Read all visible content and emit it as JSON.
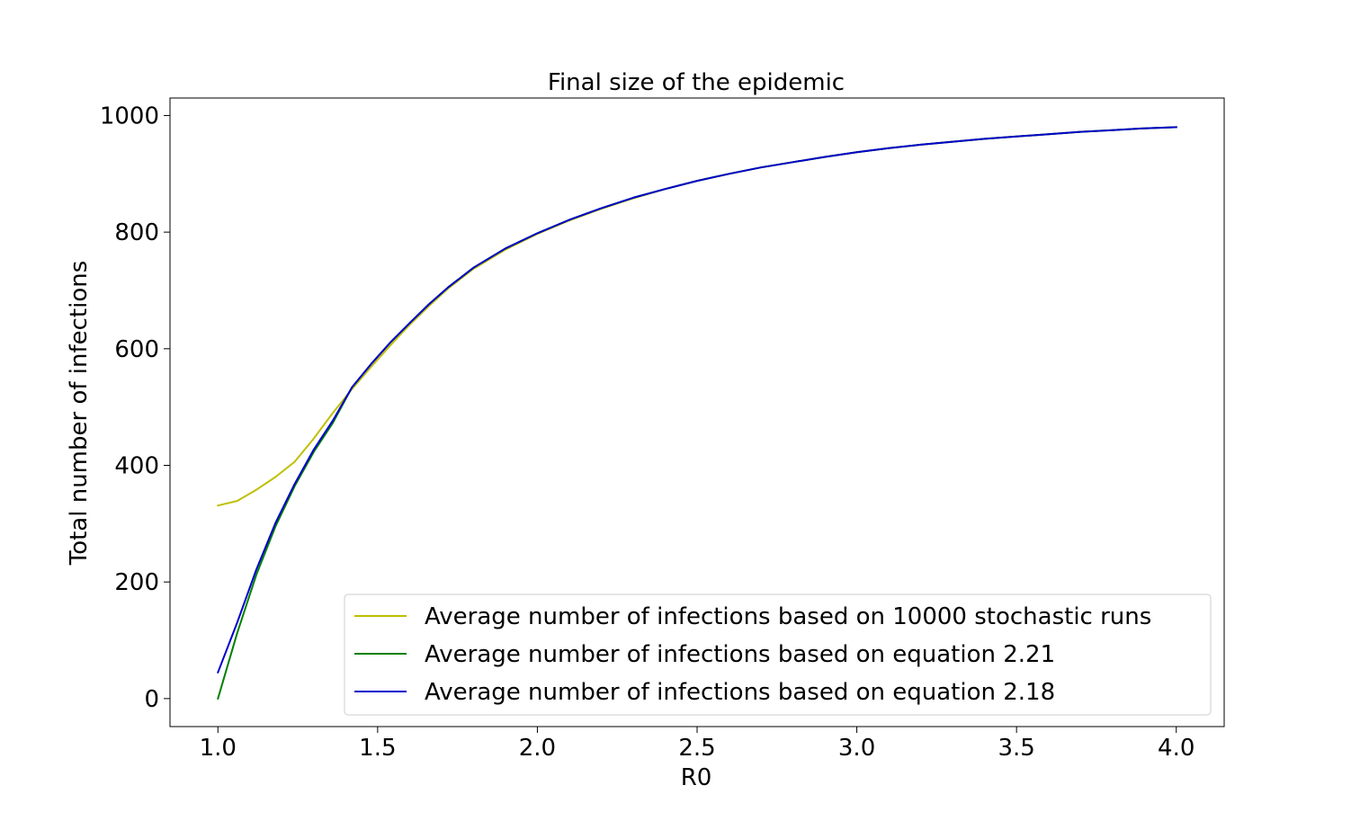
{
  "chart_data": {
    "type": "line",
    "title": "Final size of the epidemic",
    "xlabel": "R0",
    "ylabel": "Total number of infections",
    "xlim": [
      0.85,
      4.15
    ],
    "ylim": [
      -48,
      1030
    ],
    "xticks": [
      1.0,
      1.5,
      2.0,
      2.5,
      3.0,
      3.5,
      4.0
    ],
    "xtick_labels": [
      "1.0",
      "1.5",
      "2.0",
      "2.5",
      "3.0",
      "3.5",
      "4.0"
    ],
    "yticks": [
      0,
      200,
      400,
      600,
      800,
      1000
    ],
    "ytick_labels": [
      "0",
      "200",
      "400",
      "600",
      "800",
      "1000"
    ],
    "grid": false,
    "legend_position": "lower-right",
    "series": [
      {
        "name": "Average number of infections based on 10000 stochastic runs",
        "color": "#bfbf00",
        "x": [
          1.0,
          1.06,
          1.12,
          1.18,
          1.24,
          1.3,
          1.36,
          1.42,
          1.48,
          1.54,
          1.6,
          1.66,
          1.72,
          1.8,
          1.9,
          2.0,
          2.1,
          2.2,
          2.3,
          2.4,
          2.5,
          2.6,
          2.7,
          2.8,
          2.9,
          3.0,
          3.1,
          3.2,
          3.3,
          3.4,
          3.5,
          3.6,
          3.7,
          3.8,
          3.9,
          4.0
        ],
        "y": [
          331,
          339,
          358,
          380,
          406,
          446,
          490,
          531,
          569,
          606,
          641,
          673,
          703,
          737,
          770,
          797,
          820,
          840,
          858,
          874,
          888,
          900,
          911,
          920,
          929,
          937,
          944,
          950,
          955,
          960,
          964,
          968,
          972,
          975,
          978,
          980
        ]
      },
      {
        "name": "Average number of infections based on equation 2.21",
        "color": "#008000",
        "x": [
          1.0,
          1.06,
          1.12,
          1.18,
          1.24,
          1.3,
          1.36,
          1.42,
          1.48,
          1.54,
          1.6,
          1.66,
          1.72,
          1.8,
          1.9,
          2.0,
          2.1,
          2.2,
          2.3,
          2.4,
          2.5,
          2.6,
          2.7,
          2.8,
          2.9,
          3.0,
          3.1,
          3.2,
          3.3,
          3.4,
          3.5,
          3.6,
          3.7,
          3.8,
          3.9,
          4.0
        ],
        "y": [
          0,
          112,
          212,
          295,
          364,
          423,
          473,
          534,
          574,
          611,
          644,
          676,
          705,
          739,
          772,
          798,
          821,
          841,
          859,
          874,
          888,
          900,
          911,
          920,
          929,
          937,
          944,
          950,
          955,
          960,
          964,
          968,
          972,
          975,
          978,
          980
        ]
      },
      {
        "name": "Average number of infections based on equation 2.18",
        "color": "#0000cc",
        "x": [
          1.0,
          1.06,
          1.12,
          1.18,
          1.24,
          1.3,
          1.36,
          1.42,
          1.48,
          1.54,
          1.6,
          1.66,
          1.72,
          1.8,
          1.9,
          2.0,
          2.1,
          2.2,
          2.3,
          2.4,
          2.5,
          2.6,
          2.7,
          2.8,
          2.9,
          3.0,
          3.1,
          3.2,
          3.3,
          3.4,
          3.5,
          3.6,
          3.7,
          3.8,
          3.9,
          4.0
        ],
        "y": [
          45,
          130,
          221,
          301,
          368,
          427,
          477,
          534,
          574,
          611,
          644,
          676,
          705,
          739,
          772,
          798,
          821,
          841,
          859,
          874,
          888,
          900,
          911,
          920,
          929,
          937,
          944,
          950,
          955,
          960,
          964,
          968,
          972,
          975,
          978,
          980
        ]
      }
    ]
  }
}
